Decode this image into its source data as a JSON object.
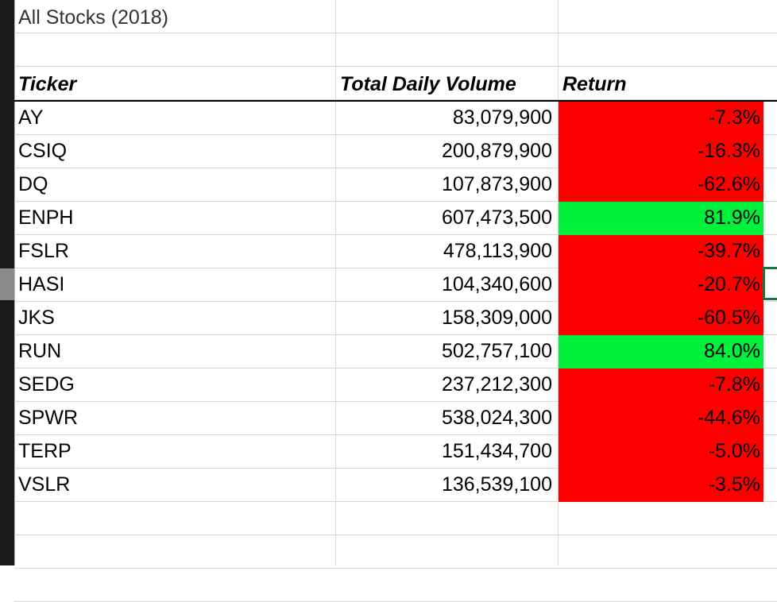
{
  "sheet": {
    "title": "All Stocks (2018)",
    "headers": {
      "ticker": "Ticker",
      "volume": "Total Daily Volume",
      "return": "Return"
    },
    "colors": {
      "negative": "#ff0000",
      "positive": "#00f03c"
    },
    "rows": [
      {
        "ticker": "AY",
        "volume": "83,079,900",
        "return": "-7.3%",
        "sign": "negative"
      },
      {
        "ticker": "CSIQ",
        "volume": "200,879,900",
        "return": "-16.3%",
        "sign": "negative"
      },
      {
        "ticker": "DQ",
        "volume": "107,873,900",
        "return": "-62.6%",
        "sign": "negative"
      },
      {
        "ticker": "ENPH",
        "volume": "607,473,500",
        "return": "81.9%",
        "sign": "positive"
      },
      {
        "ticker": "FSLR",
        "volume": "478,113,900",
        "return": "-39.7%",
        "sign": "negative"
      },
      {
        "ticker": "HASI",
        "volume": "104,340,600",
        "return": "-20.7%",
        "sign": "negative"
      },
      {
        "ticker": "JKS",
        "volume": "158,309,000",
        "return": "-60.5%",
        "sign": "negative"
      },
      {
        "ticker": "RUN",
        "volume": "502,757,100",
        "return": "84.0%",
        "sign": "positive"
      },
      {
        "ticker": "SEDG",
        "volume": "237,212,300",
        "return": "-7.8%",
        "sign": "negative"
      },
      {
        "ticker": "SPWR",
        "volume": "538,024,300",
        "return": "-44.6%",
        "sign": "negative"
      },
      {
        "ticker": "TERP",
        "volume": "151,434,700",
        "return": "-5.0%",
        "sign": "negative"
      },
      {
        "ticker": "VSLR",
        "volume": "136,539,100",
        "return": "-3.5%",
        "sign": "negative"
      }
    ]
  }
}
